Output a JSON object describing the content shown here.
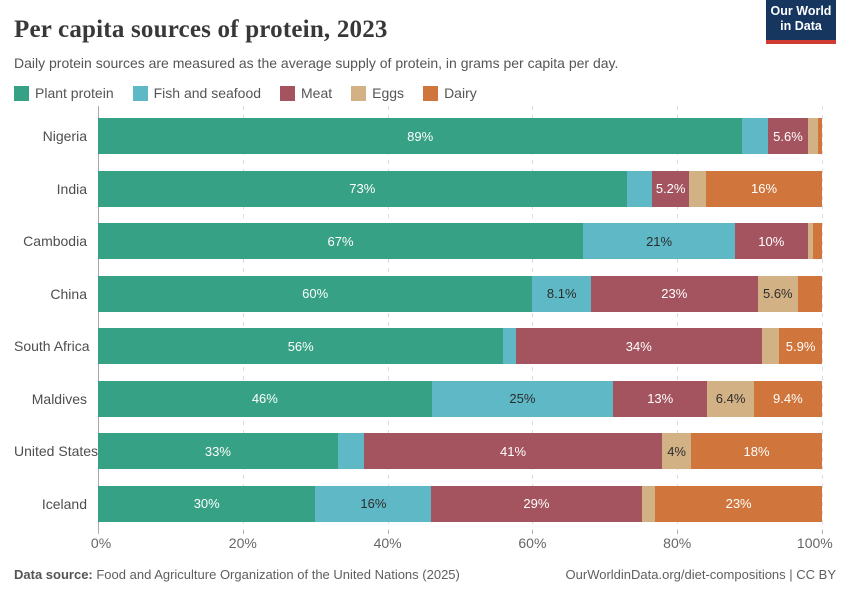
{
  "logo": {
    "line1": "Our World",
    "line2": "in Data",
    "bg_color": "#16355f",
    "accent_color": "#cf3b32"
  },
  "footer": {
    "datasource_label": "Data source:",
    "datasource_text": " Food and Agriculture Organization of the United Nations (2025)",
    "credit": "OurWorldinData.org/diet-compositions | CC BY"
  },
  "chart_data": {
    "type": "bar",
    "stacked": true,
    "orientation": "horizontal",
    "title": "Per capita sources of protein, 2023",
    "subtitle": "Daily protein sources are measured as the average supply of protein, in grams per capita per day.",
    "xlim": [
      0,
      100
    ],
    "x_ticks": [
      {
        "pos": 0,
        "label": "0%"
      },
      {
        "pos": 20,
        "label": "20%"
      },
      {
        "pos": 40,
        "label": "40%"
      },
      {
        "pos": 60,
        "label": "60%"
      },
      {
        "pos": 80,
        "label": "80%"
      },
      {
        "pos": 100,
        "label": "100%"
      }
    ],
    "grid": "dashed-vertical",
    "legend_position": "top",
    "categories": [
      "Nigeria",
      "India",
      "Cambodia",
      "China",
      "South Africa",
      "Maldives",
      "United States",
      "Iceland"
    ],
    "series": [
      {
        "name": "Plant protein",
        "color": "#36a184",
        "text_color": "#ffffff",
        "values": [
          89,
          73,
          67,
          60,
          56,
          46,
          33,
          30
        ],
        "labels": [
          "89%",
          "73%",
          "67%",
          "60%",
          "56%",
          "46%",
          "33%",
          "30%"
        ]
      },
      {
        "name": "Fish and seafood",
        "color": "#5fb8c5",
        "text_color": "#2d2d2d",
        "values": [
          3.5,
          3.5,
          21,
          8.1,
          1.7,
          25,
          3.6,
          16
        ],
        "labels": [
          "",
          "",
          "21%",
          "8.1%",
          "",
          "25%",
          "",
          "16%"
        ]
      },
      {
        "name": "Meat",
        "color": "#a4545e",
        "text_color": "#ffffff",
        "values": [
          5.6,
          5.2,
          10,
          23,
          34,
          13,
          41,
          29
        ],
        "labels": [
          "5.6%",
          "5.2%",
          "10%",
          "23%",
          "34%",
          "13%",
          "41%",
          "29%"
        ]
      },
      {
        "name": "Eggs",
        "color": "#d2b185",
        "text_color": "#2d2d2d",
        "values": [
          1.4,
          2.3,
          0.8,
          5.6,
          2.4,
          6.4,
          4,
          1.9
        ],
        "labels": [
          "",
          "",
          "",
          "5.6%",
          "",
          "6.4%",
          "4%",
          ""
        ]
      },
      {
        "name": "Dairy",
        "color": "#d0763c",
        "text_color": "#ffffff",
        "values": [
          0.5,
          16,
          1.2,
          3.3,
          5.9,
          9.4,
          18,
          23
        ],
        "labels": [
          "",
          "16%",
          "",
          "",
          "5.9%",
          "9.4%",
          "18%",
          "23%"
        ]
      }
    ]
  }
}
